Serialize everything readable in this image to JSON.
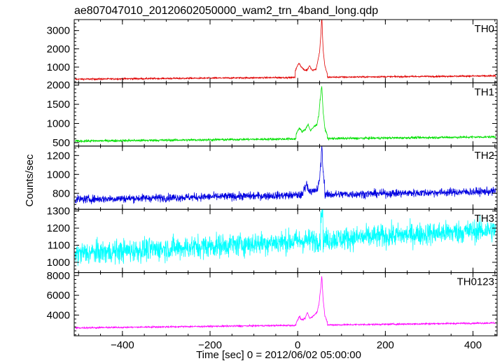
{
  "chart_data": {
    "type": "line",
    "title": "ae807047010_20120602050000_wam2_trn_4band_long.qdp",
    "xlabel": "Time [sec] 0 = 2012/06/02 05:00:00",
    "ylabel": "Counts/sec",
    "xlim": [
      -510,
      455
    ],
    "xticks": [
      -400,
      -200,
      0,
      200,
      400
    ],
    "xtick_labels": [
      "−400",
      "−200",
      "0",
      "200",
      "400"
    ],
    "panels": [
      {
        "name": "TH0",
        "color": "#e00000",
        "ylim": [
          140,
          3600
        ],
        "yticks": [
          1000,
          2000,
          3000
        ],
        "ytick_labels": [
          "1000",
          "2000",
          "3000"
        ],
        "baseline_start": 340,
        "baseline_end": 520,
        "noise": 30,
        "features": [
          [
            -6,
            350
          ],
          [
            3,
            800
          ],
          [
            8,
            580
          ],
          [
            16,
            380
          ],
          [
            22,
            420
          ],
          [
            27,
            650
          ],
          [
            33,
            380
          ],
          [
            42,
            450
          ],
          [
            46,
            900
          ],
          [
            50,
            1400
          ],
          [
            53,
            2400
          ],
          [
            55,
            3300
          ],
          [
            58,
            1500
          ],
          [
            62,
            600
          ],
          [
            68,
            150
          ]
        ]
      },
      {
        "name": "TH1",
        "color": "#00e000",
        "ylim": [
          410,
          2060
        ],
        "yticks": [
          500,
          1000,
          1500,
          2000
        ],
        "ytick_labels": [
          "500",
          "1000",
          "1500",
          "2000"
        ],
        "baseline_start": 540,
        "baseline_end": 650,
        "noise": 22,
        "features": [
          [
            -4,
            120
          ],
          [
            4,
            280
          ],
          [
            10,
            180
          ],
          [
            18,
            260
          ],
          [
            24,
            380
          ],
          [
            29,
            200
          ],
          [
            36,
            300
          ],
          [
            44,
            380
          ],
          [
            48,
            620
          ],
          [
            52,
            1100
          ],
          [
            55,
            1380
          ],
          [
            58,
            700
          ],
          [
            62,
            260
          ],
          [
            68,
            80
          ]
        ]
      },
      {
        "name": "TH2",
        "color": "#0000e0",
        "ylim": [
          630,
          1300
        ],
        "yticks": [
          800,
          1000,
          1200
        ],
        "ytick_labels": [
          "800",
          "1000",
          "1200"
        ],
        "baseline_start": 735,
        "baseline_end": 820,
        "noise": 30,
        "features": [
          [
            12,
            40
          ],
          [
            20,
            120
          ],
          [
            24,
            60
          ],
          [
            34,
            30
          ],
          [
            46,
            60
          ],
          [
            50,
            180
          ],
          [
            53,
            340
          ],
          [
            55,
            520
          ],
          [
            58,
            250
          ],
          [
            62,
            80
          ]
        ]
      },
      {
        "name": "TH3",
        "color": "#00ffff",
        "ylim": [
          940,
          1310
        ],
        "yticks": [
          1000,
          1100,
          1200,
          1300
        ],
        "ytick_labels": [
          "1000",
          "1100",
          "1200",
          "1300"
        ],
        "baseline_start": 1050,
        "baseline_end": 1190,
        "noise": 48,
        "features": [
          [
            52,
            80
          ],
          [
            55,
            200
          ],
          [
            58,
            100
          ]
        ]
      },
      {
        "name": "TH0123",
        "color": "#ff00ff",
        "ylim": [
          1900,
          8300
        ],
        "yticks": [
          4000,
          6000,
          8000
        ],
        "ytick_labels": [
          "4000",
          "6000",
          "8000"
        ],
        "baseline_start": 2700,
        "baseline_end": 3200,
        "noise": 55,
        "features": [
          [
            -4,
            200
          ],
          [
            4,
            900
          ],
          [
            9,
            500
          ],
          [
            17,
            700
          ],
          [
            22,
            1300
          ],
          [
            27,
            700
          ],
          [
            35,
            900
          ],
          [
            44,
            1300
          ],
          [
            48,
            2000
          ],
          [
            52,
            3500
          ],
          [
            55,
            5000
          ],
          [
            58,
            2600
          ],
          [
            62,
            900
          ],
          [
            68,
            250
          ]
        ]
      }
    ]
  }
}
